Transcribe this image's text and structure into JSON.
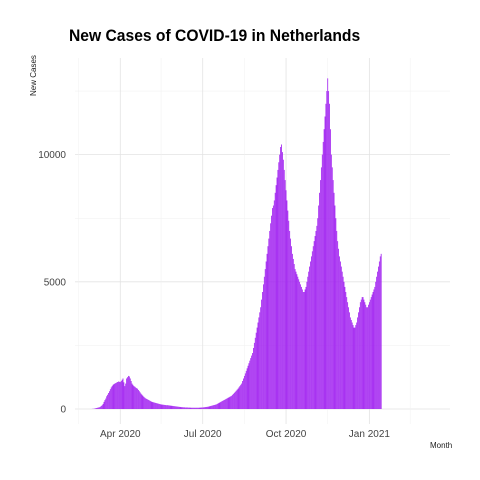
{
  "chart_data": {
    "type": "bar",
    "title": "New Cases of COVID-19 in Netherlands",
    "xlabel": "Month",
    "ylabel": "New Cases",
    "ylim": [
      0,
      13800
    ],
    "xlim": [
      "2020-02-11",
      "2021-03-31"
    ],
    "yticks": [
      0,
      5000,
      10000
    ],
    "xticks": [
      {
        "date": "2020-04-01",
        "label": "Apr 2020"
      },
      {
        "date": "2020-07-01",
        "label": "Jul 2020"
      },
      {
        "date": "2020-10-01",
        "label": "Oct 2020"
      },
      {
        "date": "2021-01-01",
        "label": "Jan 2021"
      }
    ],
    "start_date": "2020-02-27",
    "grid": true,
    "legend": "none",
    "bar_color": "#a020f0",
    "values": [
      0,
      0,
      0,
      5,
      8,
      10,
      20,
      30,
      40,
      50,
      60,
      70,
      90,
      120,
      150,
      200,
      280,
      350,
      410,
      500,
      560,
      630,
      700,
      780,
      850,
      900,
      950,
      980,
      1000,
      1020,
      1040,
      1060,
      1080,
      1070,
      1060,
      1100,
      1150,
      1200,
      1050,
      900,
      1000,
      1200,
      1250,
      1300,
      1280,
      1200,
      1100,
      1000,
      950,
      900,
      880,
      850,
      820,
      800,
      750,
      700,
      650,
      600,
      560,
      520,
      480,
      450,
      420,
      400,
      380,
      360,
      340,
      320,
      300,
      280,
      270,
      260,
      250,
      240,
      230,
      220,
      210,
      200,
      190,
      180,
      175,
      170,
      165,
      160,
      155,
      150,
      150,
      145,
      140,
      135,
      130,
      125,
      120,
      115,
      110,
      105,
      100,
      95,
      90,
      85,
      80,
      75,
      70,
      70,
      65,
      65,
      60,
      60,
      60,
      55,
      55,
      55,
      50,
      50,
      50,
      50,
      50,
      50,
      50,
      50,
      50,
      50,
      55,
      55,
      60,
      60,
      65,
      70,
      75,
      80,
      85,
      90,
      100,
      110,
      120,
      130,
      140,
      150,
      160,
      170,
      180,
      200,
      220,
      240,
      260,
      280,
      300,
      320,
      340,
      360,
      380,
      400,
      420,
      440,
      460,
      480,
      500,
      520,
      560,
      600,
      640,
      680,
      720,
      760,
      800,
      850,
      900,
      950,
      1000,
      1100,
      1200,
      1300,
      1400,
      1500,
      1600,
      1700,
      1800,
      1900,
      2000,
      2100,
      2200,
      2400,
      2600,
      2800,
      3000,
      3200,
      3400,
      3600,
      3800,
      4000,
      4300,
      4600,
      4900,
      5200,
      5500,
      5800,
      6100,
      6400,
      6700,
      7000,
      7300,
      7600,
      7900,
      8000,
      8200,
      8500,
      8800,
      9100,
      9400,
      9700,
      10000,
      10300,
      10400,
      10100,
      9800,
      9400,
      9000,
      8600,
      8200,
      7800,
      7400,
      7000,
      6700,
      6400,
      6100,
      5900,
      5700,
      5500,
      5400,
      5300,
      5200,
      5100,
      5000,
      4900,
      4800,
      4700,
      4600,
      4600,
      4700,
      4800,
      5000,
      5200,
      5400,
      5600,
      5800,
      6000,
      6200,
      6400,
      6600,
      6800,
      7000,
      7200,
      7500,
      8000,
      8500,
      9000,
      9500,
      10000,
      10500,
      11000,
      11500,
      12000,
      12500,
      13000,
      12500,
      12000,
      11000,
      10000,
      9500,
      9000,
      8500,
      8000,
      7500,
      7000,
      6600,
      6300,
      6000,
      5800,
      5600,
      5400,
      5200,
      5000,
      4800,
      4600,
      4400,
      4200,
      4000,
      3800,
      3600,
      3500,
      3400,
      3300,
      3200,
      3200,
      3300,
      3400,
      3600,
      3800,
      4000,
      4200,
      4300,
      4400,
      4400,
      4300,
      4200,
      4100,
      4000,
      4000,
      4100,
      4200,
      4300,
      4400,
      4500,
      4600,
      4700,
      4800,
      5000,
      5200,
      5400,
      5600,
      5800,
      6000,
      6100
    ]
  }
}
